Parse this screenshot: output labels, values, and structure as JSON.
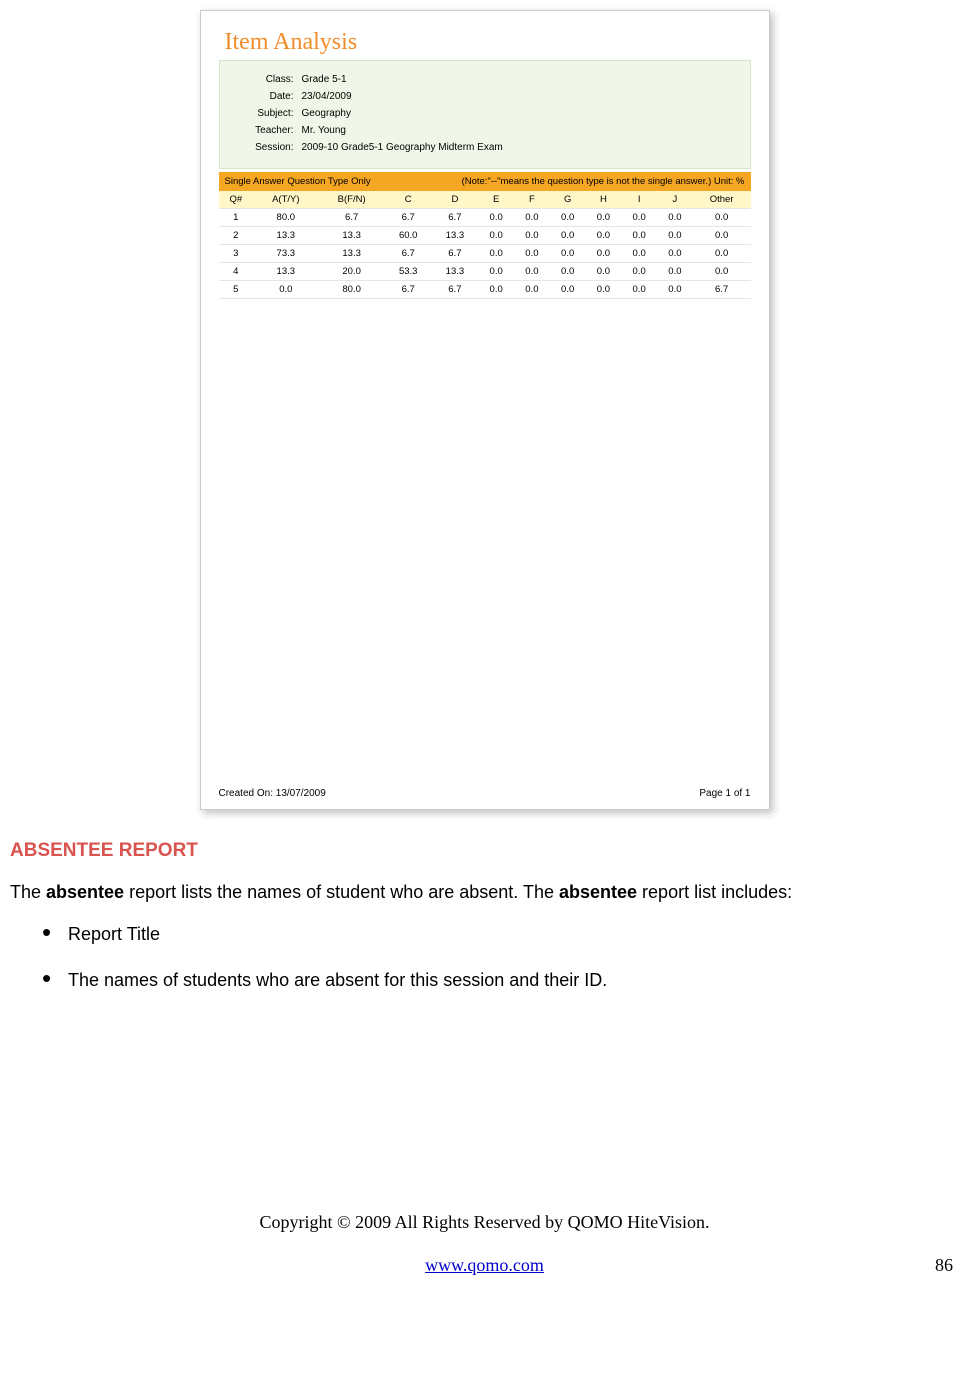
{
  "report": {
    "title": "Item Analysis",
    "info": {
      "labels": {
        "class": "Class:",
        "date": "Date:",
        "subject": "Subject:",
        "teacher": "Teacher:",
        "session": "Session:"
      },
      "class": "Grade 5-1",
      "date": "23/04/2009",
      "subject": "Geography",
      "teacher": "Mr. Young",
      "session": "2009-10 Grade5-1 Geography Midterm Exam"
    },
    "orange_bar": {
      "left": "Single Answer Question Type Only",
      "right": "(Note:\"--\"means the question type is not the single answer.)   Unit: %"
    },
    "table": {
      "columns": [
        "Q#",
        "A(T/Y)",
        "B(F/N)",
        "C",
        "D",
        "E",
        "F",
        "G",
        "H",
        "I",
        "J",
        "Other"
      ],
      "rows": [
        [
          "1",
          "80.0",
          "6.7",
          "6.7",
          "6.7",
          "0.0",
          "0.0",
          "0.0",
          "0.0",
          "0.0",
          "0.0",
          "0.0"
        ],
        [
          "2",
          "13.3",
          "13.3",
          "60.0",
          "13.3",
          "0.0",
          "0.0",
          "0.0",
          "0.0",
          "0.0",
          "0.0",
          "0.0"
        ],
        [
          "3",
          "73.3",
          "13.3",
          "6.7",
          "6.7",
          "0.0",
          "0.0",
          "0.0",
          "0.0",
          "0.0",
          "0.0",
          "0.0"
        ],
        [
          "4",
          "13.3",
          "20.0",
          "53.3",
          "13.3",
          "0.0",
          "0.0",
          "0.0",
          "0.0",
          "0.0",
          "0.0",
          "0.0"
        ],
        [
          "5",
          "0.0",
          "80.0",
          "6.7",
          "6.7",
          "0.0",
          "0.0",
          "0.0",
          "0.0",
          "0.0",
          "0.0",
          "6.7"
        ]
      ],
      "header_bg": "#fff7c7",
      "border_color": "#e5e5e5"
    },
    "footer": {
      "created_on": "Created On: 13/07/2009",
      "page": "Page 1 of 1"
    },
    "colors": {
      "title": "#f28c28",
      "info_bg": "#f0f7e8",
      "orange_bar_bg": "#f5a623"
    }
  },
  "doc": {
    "section_heading": "ABSENTEE REPORT",
    "heading_color": "#d9534f",
    "paragraph_parts": {
      "p1": "The ",
      "p2_bold": "absentee",
      "p3": " report lists the names of student who are absent. The ",
      "p4_bold": "absentee",
      "p5": " report list includes:"
    },
    "bullets": [
      "Report Title",
      "The names of students who are absent for this session and their ID."
    ],
    "copyright": "Copyright © 2009 All Rights Reserved by QOMO HiteVision.",
    "url": "www.qomo.com",
    "page_number": "86"
  }
}
